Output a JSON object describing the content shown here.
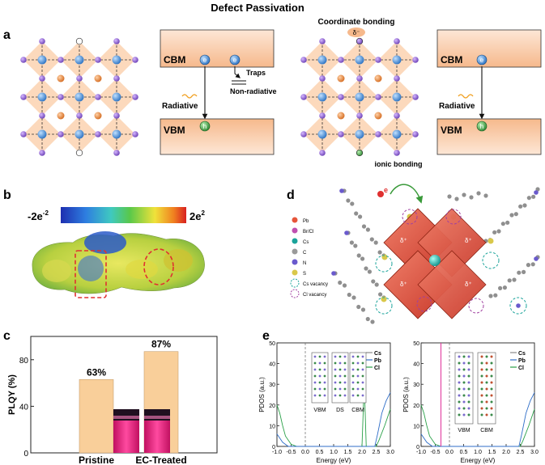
{
  "title": "Defect Passivation",
  "panel_a": {
    "label": "a",
    "left": {
      "cbm": "CBM",
      "vbm": "VBM",
      "e1": "e",
      "e2": "e",
      "h": "h",
      "traps": "Traps",
      "non_radiative": "Non-radiative",
      "radiative": "Radiative"
    },
    "right": {
      "coordinate_bonding": "Coordinate bonding",
      "delta": "δ⁻",
      "ionic_bonding": "ionic bonding",
      "cbm": "CBM",
      "vbm": "VBM",
      "e": "e",
      "h": "h",
      "radiative": "Radiative"
    }
  },
  "panel_b": {
    "label": "b",
    "scale_min": "-2e",
    "scale_min_exp": "-2",
    "scale_max": "2e",
    "scale_max_exp": "2"
  },
  "panel_c": {
    "label": "c",
    "chart_data": {
      "type": "bar",
      "categories": [
        "Pristine",
        "EC-Treated"
      ],
      "values": [
        63,
        87
      ],
      "value_labels": [
        "63%",
        "87%"
      ],
      "ylabel": "PLQY (%)",
      "ylim": [
        0,
        100
      ],
      "yticks": [
        "0",
        "40",
        "80"
      ],
      "bar_color": "#f9cf9a"
    }
  },
  "panel_d": {
    "label": "d",
    "legend": [
      {
        "label": "Pb",
        "color": "#e6553a"
      },
      {
        "label": "Br/Cl",
        "color": "#c04fb0"
      },
      {
        "label": "Cs",
        "color": "#1aa39a"
      },
      {
        "label": "C",
        "color": "#9a9a9a"
      },
      {
        "label": "N",
        "color": "#6a5acd"
      },
      {
        "label": "S",
        "color": "#d9c84a"
      },
      {
        "label": "Cs vacancy",
        "color": "#1aa39a"
      },
      {
        "label": "Cl vacancy",
        "color": "#a040a0"
      }
    ],
    "electron": "e",
    "delta_labels": [
      "δ⁺",
      "δ⁺",
      "δ⁺",
      "δ⁺"
    ]
  },
  "panel_e": {
    "label": "e",
    "ylabel": "PDOS (a.u.)",
    "xlabel": "Energy (eV)",
    "left": {
      "xticks": [
        "-1.0",
        "-0.5",
        "0.0",
        "0.5",
        "1.0",
        "1.5",
        "2.0",
        "2.5",
        "3.0"
      ],
      "yticks": [
        "0",
        "10",
        "20",
        "30",
        "40",
        "50"
      ],
      "inset_labels": [
        "VBM",
        "DS",
        "CBM"
      ],
      "legend": [
        "Cs",
        "Pb",
        "Cl"
      ]
    },
    "right": {
      "xticks": [
        "-1.0",
        "-0.5",
        "0.0",
        "0.5",
        "1.0",
        "1.5",
        "2.0",
        "2.5",
        "3.0"
      ],
      "yticks": [
        "0",
        "10",
        "20",
        "30",
        "40",
        "50"
      ],
      "inset_labels": [
        "VBM",
        "CBM"
      ],
      "legend": [
        "Cs",
        "Pb",
        "Cl"
      ]
    },
    "series_colors": {
      "Cs": "#8a8a8a",
      "Pb": "#2f6ec8",
      "Cl": "#2aa048"
    }
  }
}
